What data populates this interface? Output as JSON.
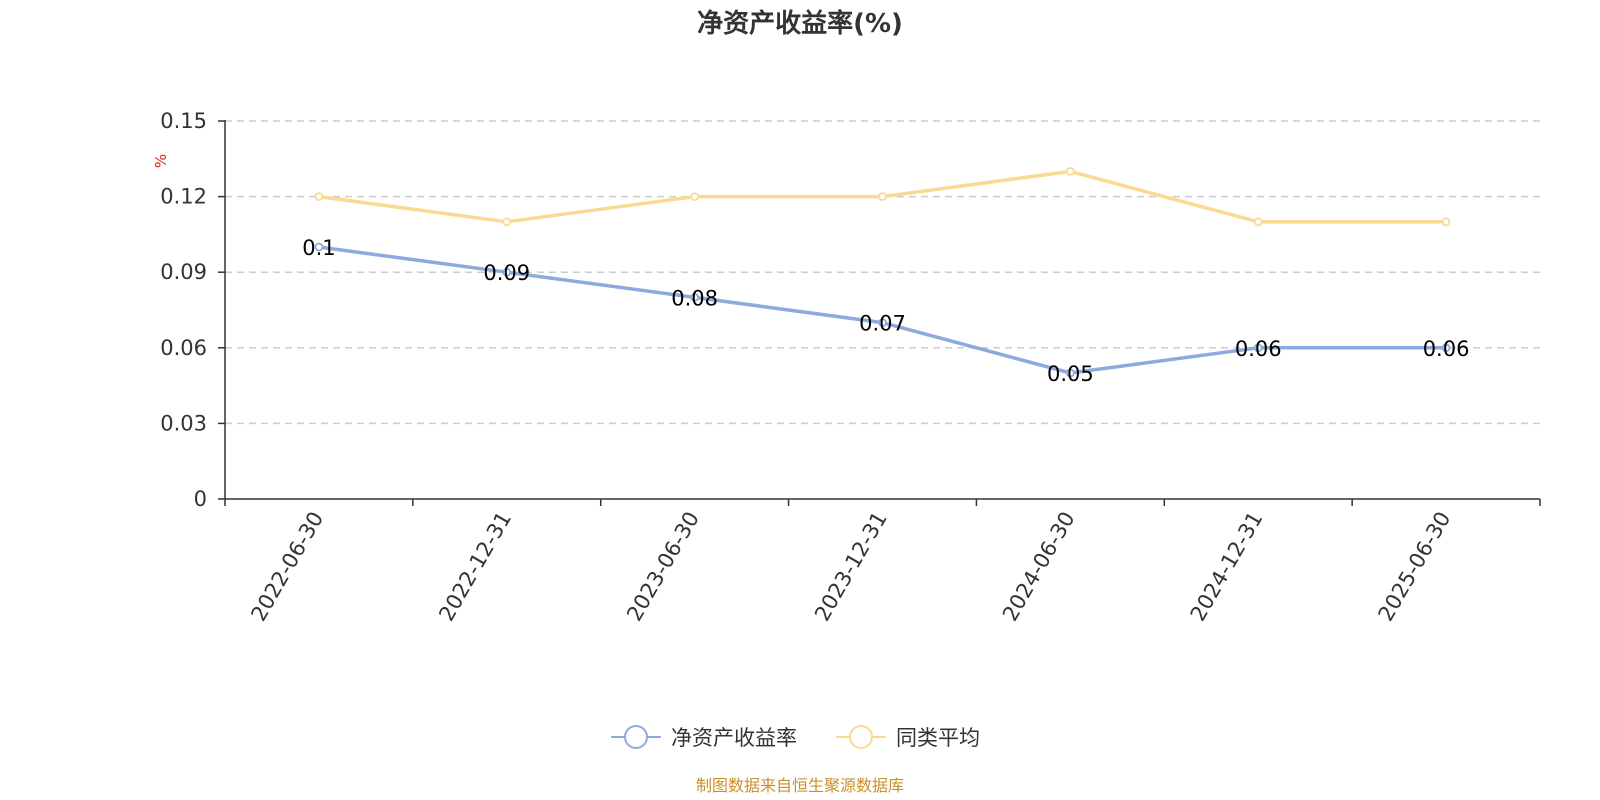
{
  "chart_data": {
    "type": "line",
    "title": "净资产收益率(%)",
    "ylabel": "%",
    "xlabel": "",
    "categories": [
      "2022-06-30",
      "2022-12-31",
      "2023-06-30",
      "2023-12-31",
      "2024-06-30",
      "2024-12-31",
      "2025-06-30"
    ],
    "ylim": [
      0,
      0.15
    ],
    "yticks": [
      "0",
      "0.03",
      "0.06",
      "0.09",
      "0.12",
      "0.15"
    ],
    "grid": true,
    "legend_position": "bottom-center",
    "series": [
      {
        "name": "净资产收益率",
        "color": "#8eaadb",
        "values": [
          0.1,
          0.09,
          0.08,
          0.07,
          0.05,
          0.06,
          0.06
        ],
        "labels": [
          "0.1",
          "0.09",
          "0.08",
          "0.07",
          "0.05",
          "0.06",
          "0.06"
        ],
        "show_labels": true
      },
      {
        "name": "同类平均",
        "color": "#fad994",
        "values": [
          0.12,
          0.11,
          0.12,
          0.12,
          0.13,
          0.11,
          0.11
        ],
        "show_labels": false
      }
    ]
  },
  "source": "制图数据来自恒生聚源数据库"
}
